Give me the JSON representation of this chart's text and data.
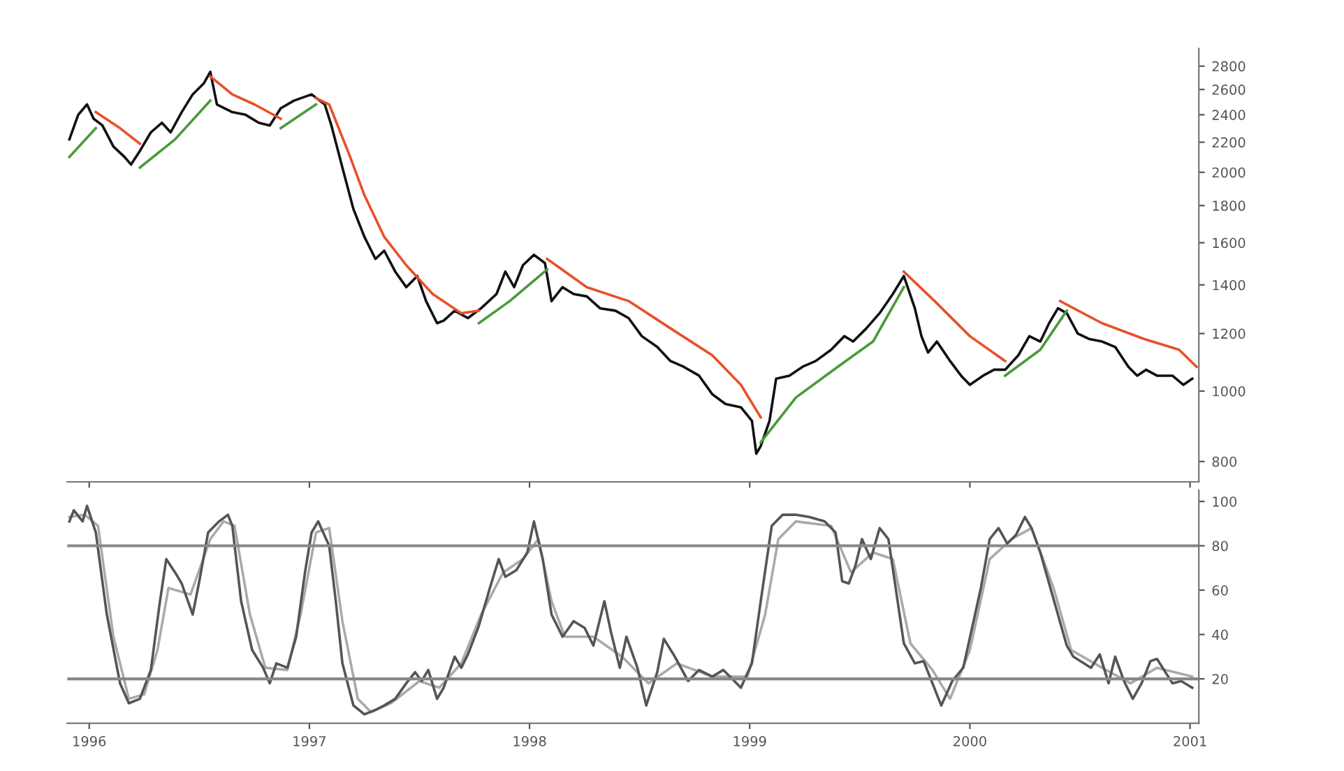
{
  "chart_data": [
    {
      "type": "line",
      "log": "y",
      "ylim": [
        750,
        2960
      ],
      "yticks": [
        800,
        1000,
        1200,
        1400,
        1600,
        1800,
        2000,
        2200,
        2400,
        2600,
        2800
      ],
      "xlim": [
        1995.9,
        2001.04
      ],
      "xticks": [
        1996,
        1997,
        1998,
        1999,
        2000,
        2001
      ],
      "tick_labels": "y",
      "grid": false,
      "marker": "none",
      "line_style": "solid",
      "series": [
        {
          "color": "#111111",
          "x": [
            1995.91,
            1995.95,
            1995.99,
            1996.02,
            1996.06,
            1996.11,
            1996.16,
            1996.19,
            1996.23,
            1996.28,
            1996.33,
            1996.37,
            1996.42,
            1996.47,
            1996.52,
            1996.55,
            1996.58,
            1996.65,
            1996.71,
            1996.77,
            1996.82,
            1996.87,
            1996.93,
            1997.01,
            1997.07,
            1997.1,
            1997.15,
            1997.2,
            1997.25,
            1997.3,
            1997.34,
            1997.39,
            1997.44,
            1997.49,
            1997.53,
            1997.58,
            1997.61,
            1997.66,
            1997.72,
            1997.78,
            1997.85,
            1997.89,
            1997.93,
            1997.97,
            1998.02,
            1998.07,
            1998.1,
            1998.15,
            1998.2,
            1998.26,
            1998.32,
            1998.39,
            1998.45,
            1998.51,
            1998.58,
            1998.64,
            1998.7,
            1998.77,
            1998.83,
            1998.89,
            1998.96,
            1999.01,
            1999.03,
            1999.05,
            1999.09,
            1999.12,
            1999.18,
            1999.24,
            1999.3,
            1999.37,
            1999.43,
            1999.47,
            1999.53,
            1999.59,
            1999.65,
            1999.7,
            1999.75,
            1999.78,
            1999.81,
            1999.85,
            1999.91,
            1999.96,
            2000.0,
            2000.06,
            2000.11,
            2000.16,
            2000.22,
            2000.27,
            2000.32,
            2000.36,
            2000.4,
            2000.44,
            2000.49,
            2000.54,
            2000.6,
            2000.66,
            2000.72,
            2000.76,
            2000.8,
            2000.85,
            2000.92,
            2000.97,
            2001.01
          ],
          "values": [
            2220,
            2400,
            2480,
            2370,
            2320,
            2170,
            2100,
            2050,
            2140,
            2270,
            2340,
            2270,
            2420,
            2560,
            2650,
            2750,
            2480,
            2420,
            2400,
            2340,
            2320,
            2450,
            2510,
            2560,
            2480,
            2320,
            2030,
            1780,
            1630,
            1520,
            1560,
            1460,
            1390,
            1440,
            1330,
            1240,
            1250,
            1290,
            1260,
            1300,
            1360,
            1460,
            1390,
            1490,
            1540,
            1500,
            1330,
            1390,
            1360,
            1350,
            1300,
            1290,
            1260,
            1190,
            1150,
            1100,
            1080,
            1050,
            990,
            960,
            950,
            910,
            820,
            840,
            910,
            1040,
            1050,
            1080,
            1100,
            1140,
            1190,
            1170,
            1220,
            1280,
            1360,
            1440,
            1300,
            1190,
            1130,
            1170,
            1100,
            1050,
            1020,
            1050,
            1070,
            1070,
            1120,
            1190,
            1170,
            1240,
            1300,
            1280,
            1200,
            1180,
            1170,
            1150,
            1080,
            1050,
            1070,
            1050,
            1050,
            1020,
            1040
          ]
        },
        {
          "color": "#e8502a",
          "x": [
            1996.03,
            1996.14,
            1996.23,
            1996.39,
            1996.55,
            1996.65,
            1996.75,
            1996.87,
            1996.94,
            1997.03,
            1997.09,
            1997.18,
            1997.25,
            1997.34,
            1997.44,
            1997.56,
            1997.69,
            1997.77,
            1997.92,
            1998.08,
            1998.26,
            1998.45,
            1998.64,
            1998.83,
            1998.96,
            1999.05,
            1999.38,
            1999.7,
            1999.84,
            2000.0,
            2000.16,
            2000.28,
            2000.41,
            2000.6,
            2000.79,
            2000.95,
            2001.03
          ],
          "values": [
            2420,
            2300,
            2190,
            null,
            2710,
            2560,
            2480,
            2370,
            null,
            2530,
            2480,
            2120,
            1860,
            1630,
            1490,
            1360,
            1280,
            1290,
            null,
            1520,
            1390,
            1330,
            1220,
            1120,
            1020,
            920,
            null,
            1460,
            1330,
            1190,
            1100,
            null,
            1330,
            1240,
            1180,
            1140,
            1080
          ]
        },
        {
          "color": "#4a9a3a",
          "x": [
            1995.91,
            1996.03,
            1996.13,
            1996.23,
            1996.39,
            1996.55,
            1996.71,
            1996.87,
            1997.03,
            1997.39,
            1997.77,
            1997.91,
            1998.08,
            1998.58,
            1999.05,
            1999.21,
            1999.4,
            1999.56,
            1999.7,
            1999.93,
            2000.16,
            2000.32,
            2000.44
          ],
          "values": [
            2100,
            2300,
            null,
            2030,
            2220,
            2510,
            null,
            2300,
            2480,
            null,
            1240,
            1330,
            1470,
            null,
            850,
            980,
            1080,
            1170,
            1390,
            null,
            1050,
            1140,
            1290
          ]
        }
      ]
    },
    {
      "type": "line",
      "ylim": [
        0,
        105
      ],
      "yticks": [
        20,
        40,
        60,
        80,
        100
      ],
      "xlim": [
        1995.9,
        2001.04
      ],
      "xticks": [
        1996,
        1997,
        1998,
        1999,
        2000,
        2001
      ],
      "grid": false,
      "marker": "none",
      "line_style": "solid",
      "ref_lines": [
        {
          "axis": "y",
          "value": 80,
          "color": "#888888"
        },
        {
          "axis": "y",
          "value": 20,
          "color": "#888888"
        }
      ],
      "series": [
        {
          "color": "#aaaaaa",
          "x": [
            1995.91,
            1995.98,
            1996.04,
            1996.11,
            1996.18,
            1996.25,
            1996.31,
            1996.36,
            1996.46,
            1996.55,
            1996.61,
            1996.66,
            1996.73,
            1996.8,
            1996.9,
            1996.96,
            1997.03,
            1997.09,
            1997.15,
            1997.22,
            1997.28,
            1997.37,
            1997.5,
            1997.59,
            1997.69,
            1997.78,
            1997.88,
            1997.97,
            1998.04,
            1998.1,
            1998.16,
            1998.29,
            1998.42,
            1998.54,
            1998.67,
            1998.83,
            1998.99,
            1999.07,
            1999.13,
            1999.21,
            1999.37,
            1999.46,
            1999.56,
            1999.65,
            1999.73,
            1999.83,
            1999.91,
            2000.0,
            2000.09,
            2000.19,
            2000.28,
            2000.38,
            2000.46,
            2000.6,
            2000.73,
            2000.85,
            2001.01
          ],
          "values": [
            93,
            94,
            89,
            39,
            11,
            13,
            33,
            61,
            58,
            83,
            91,
            89,
            49,
            25,
            24,
            49,
            86,
            88,
            46,
            11,
            5,
            9,
            19,
            16,
            27,
            49,
            68,
            74,
            83,
            55,
            39,
            39,
            30,
            18,
            27,
            21,
            21,
            49,
            83,
            91,
            89,
            68,
            77,
            74,
            36,
            24,
            11,
            33,
            74,
            83,
            88,
            61,
            33,
            25,
            18,
            25,
            21
          ]
        },
        {
          "color": "#555555",
          "x": [
            1995.91,
            1995.93,
            1995.97,
            1995.99,
            1996.03,
            1996.08,
            1996.14,
            1996.18,
            1996.23,
            1996.28,
            1996.32,
            1996.35,
            1996.39,
            1996.42,
            1996.47,
            1996.5,
            1996.54,
            1996.59,
            1996.63,
            1996.65,
            1996.69,
            1996.74,
            1996.79,
            1996.82,
            1996.85,
            1996.9,
            1996.94,
            1996.98,
            1997.01,
            1997.04,
            1997.09,
            1997.12,
            1997.15,
            1997.2,
            1997.25,
            1997.3,
            1997.34,
            1997.39,
            1997.44,
            1997.48,
            1997.51,
            1997.54,
            1997.58,
            1997.61,
            1997.66,
            1997.69,
            1997.72,
            1997.77,
            1997.82,
            1997.86,
            1997.89,
            1997.94,
            1997.99,
            1998.02,
            1998.06,
            1998.1,
            1998.15,
            1998.2,
            1998.25,
            1998.29,
            1998.34,
            1998.37,
            1998.41,
            1998.44,
            1998.49,
            1998.53,
            1998.58,
            1998.61,
            1998.66,
            1998.72,
            1998.77,
            1998.83,
            1998.88,
            1998.96,
            1999.01,
            1999.05,
            1999.1,
            1999.15,
            1999.21,
            1999.27,
            1999.34,
            1999.39,
            1999.42,
            1999.45,
            1999.48,
            1999.51,
            1999.55,
            1999.59,
            1999.63,
            1999.66,
            1999.7,
            1999.75,
            1999.79,
            1999.83,
            1999.87,
            1999.92,
            1999.97,
            2000.01,
            2000.05,
            2000.09,
            2000.13,
            2000.17,
            2000.21,
            2000.25,
            2000.28,
            2000.32,
            2000.36,
            2000.4,
            2000.44,
            2000.47,
            2000.55,
            2000.59,
            2000.63,
            2000.66,
            2000.7,
            2000.74,
            2000.78,
            2000.82,
            2000.85,
            2000.92,
            2000.96,
            2001.01
          ],
          "values": [
            91,
            96,
            91,
            98,
            86,
            49,
            18,
            9,
            11,
            24,
            54,
            74,
            68,
            63,
            49,
            64,
            86,
            91,
            94,
            89,
            55,
            33,
            25,
            18,
            27,
            25,
            39,
            68,
            86,
            91,
            80,
            55,
            27,
            8,
            4,
            6,
            8,
            11,
            18,
            23,
            19,
            24,
            11,
            16,
            30,
            25,
            31,
            44,
            61,
            74,
            66,
            69,
            77,
            91,
            74,
            49,
            39,
            46,
            43,
            35,
            55,
            41,
            25,
            39,
            25,
            8,
            23,
            38,
            30,
            19,
            24,
            21,
            24,
            16,
            27,
            55,
            89,
            94,
            94,
            93,
            91,
            86,
            64,
            63,
            71,
            83,
            74,
            88,
            83,
            63,
            36,
            27,
            28,
            18,
            8,
            19,
            25,
            43,
            61,
            83,
            88,
            81,
            85,
            93,
            88,
            77,
            63,
            49,
            35,
            30,
            25,
            31,
            18,
            30,
            19,
            11,
            18,
            28,
            29,
            18,
            19,
            16
          ]
        }
      ]
    }
  ]
}
